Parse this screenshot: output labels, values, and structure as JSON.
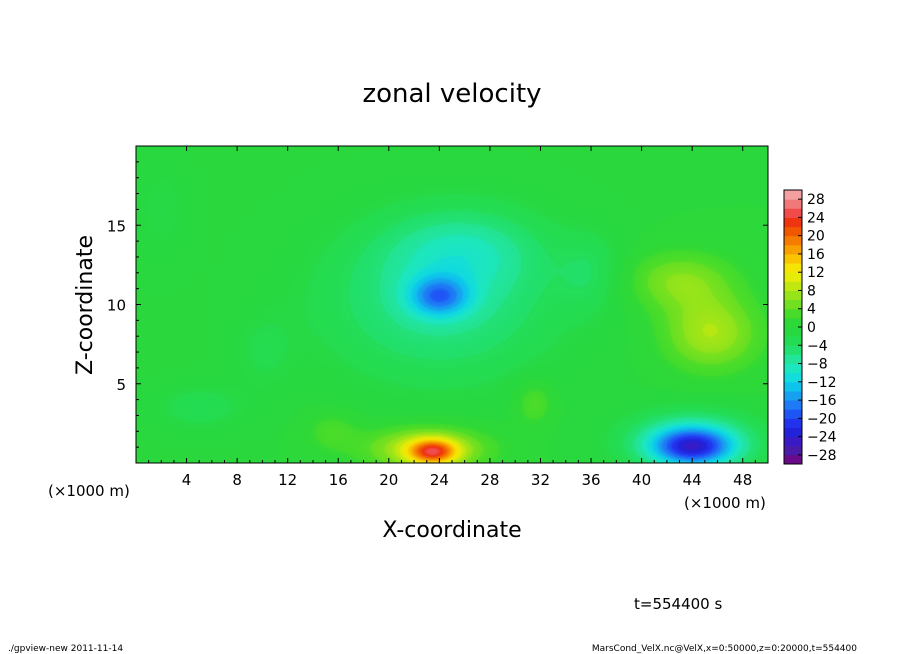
{
  "chart_data": {
    "type": "heatmap",
    "title": "zonal velocity",
    "xlabel": "X-coordinate",
    "ylabel": "Z-coordinate",
    "x_unit": "(×1000 m)",
    "x_unit_right": "(×1000 m)",
    "xlim": [
      0,
      50
    ],
    "ylim": [
      0,
      20
    ],
    "x_ticks": [
      4,
      8,
      12,
      16,
      20,
      24,
      28,
      32,
      36,
      40,
      44,
      48
    ],
    "y_ticks": [
      5,
      10,
      15
    ],
    "colorbar": {
      "ticks": [
        28,
        24,
        20,
        16,
        12,
        8,
        4,
        0,
        -4,
        -8,
        -12,
        -16,
        -20,
        -24,
        -28
      ],
      "tick_labels": [
        "28",
        "24",
        "20",
        "16",
        "12",
        "8",
        "4",
        "0",
        "−4",
        "−8",
        "−12",
        "−16",
        "−20",
        "−24",
        "−28"
      ],
      "levels": [
        -30,
        -28,
        -26,
        -24,
        -22,
        -20,
        -18,
        -16,
        -14,
        -12,
        -10,
        -8,
        -6,
        -4,
        -2,
        0,
        2,
        4,
        6,
        8,
        10,
        12,
        14,
        16,
        18,
        20,
        22,
        24,
        26,
        28,
        30
      ],
      "colors": [
        "#6a0a8a",
        "#4a1aa8",
        "#3a1ac4",
        "#2222d8",
        "#2233ee",
        "#1f55f5",
        "#1e7af5",
        "#17a0f0",
        "#0ec4ec",
        "#12dcdc",
        "#1ce6c0",
        "#22e49a",
        "#22e070",
        "#24dc52",
        "#28d840",
        "#2ed838",
        "#48dc2a",
        "#70e020",
        "#98e41a",
        "#c0e810",
        "#e4ec08",
        "#f6e404",
        "#fac400",
        "#f8a000",
        "#f47c00",
        "#f05800",
        "#ee3410",
        "#f04a4a",
        "#f07878",
        "#f4a0a0"
      ]
    },
    "field": {
      "background": 0,
      "features": [
        {
          "x": 24,
          "z": 10.3,
          "rx": 11,
          "rz": 6,
          "value": -7
        },
        {
          "x": 24,
          "z": 10.5,
          "rx": 2.8,
          "rz": 1.5,
          "value": -11
        },
        {
          "x": 26,
          "z": 13.5,
          "rx": 7,
          "rz": 3,
          "value": -5
        },
        {
          "x": 44,
          "z": 1.3,
          "rx": 6,
          "rz": 2.2,
          "value": -11
        },
        {
          "x": 44,
          "z": 1.0,
          "rx": 3.5,
          "rz": 1.3,
          "value": -14
        },
        {
          "x": 23,
          "z": 0.9,
          "rx": 5.5,
          "rz": 1.6,
          "value": 10
        },
        {
          "x": 23.5,
          "z": 0.7,
          "rx": 2.2,
          "rz": 0.9,
          "value": 16
        },
        {
          "x": 45.5,
          "z": 8.2,
          "rx": 4.5,
          "rz": 2.8,
          "value": 8
        },
        {
          "x": 43,
          "z": 11.5,
          "rx": 5,
          "rz": 2.2,
          "value": 6
        },
        {
          "x": 31.5,
          "z": 3.8,
          "rx": 1.8,
          "rz": 1.7,
          "value": 4
        },
        {
          "x": 15.5,
          "z": 2,
          "rx": 2.5,
          "rz": 1.5,
          "value": 3
        },
        {
          "x": 5,
          "z": 3.5,
          "rx": 4.5,
          "rz": 1.8,
          "value": -3
        },
        {
          "x": 10,
          "z": 7,
          "rx": 3,
          "rz": 3,
          "value": -2
        },
        {
          "x": 2,
          "z": 16,
          "rx": 2.5,
          "rz": 4,
          "value": -2
        },
        {
          "x": 36,
          "z": 12,
          "rx": 3,
          "rz": 3,
          "value": -3
        }
      ]
    }
  },
  "time_label": "t=554400 s",
  "footer": {
    "left": "./gpview-new  2011-11-14",
    "right": "MarsCond_VelX.nc@VelX,x=0:50000,z=0:20000,t=554400"
  }
}
